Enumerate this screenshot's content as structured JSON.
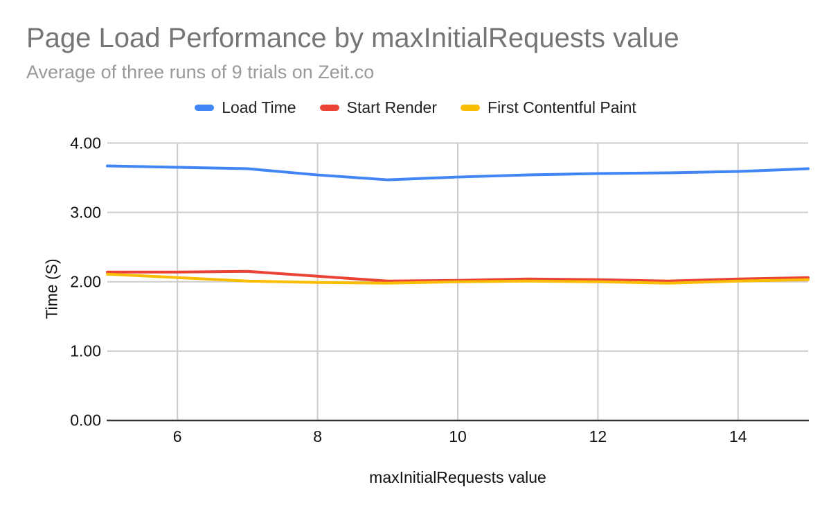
{
  "chart_data": {
    "type": "line",
    "title": "Page Load Performance by maxInitialRequests value",
    "subtitle": "Average of three runs of 9 trials on Zeit.co",
    "xlabel": "maxInitialRequests value",
    "ylabel": "Time (S)",
    "x": [
      5,
      6,
      7,
      8,
      9,
      10,
      11,
      12,
      13,
      14,
      15
    ],
    "series": [
      {
        "name": "Load Time",
        "color": "#4285F4",
        "values": [
          3.67,
          3.65,
          3.63,
          3.54,
          3.47,
          3.51,
          3.54,
          3.56,
          3.57,
          3.59,
          3.63
        ]
      },
      {
        "name": "Start Render",
        "color": "#EA4335",
        "values": [
          2.14,
          2.14,
          2.15,
          2.08,
          2.01,
          2.02,
          2.04,
          2.03,
          2.01,
          2.04,
          2.06
        ]
      },
      {
        "name": "First Contentful Paint",
        "color": "#FBBC04",
        "values": [
          2.11,
          2.06,
          2.01,
          1.99,
          1.98,
          2.0,
          2.01,
          2.0,
          1.98,
          2.01,
          2.03
        ]
      }
    ],
    "xlim": [
      5,
      15
    ],
    "ylim": [
      0,
      4
    ],
    "x_ticks": [
      6,
      8,
      10,
      12,
      14
    ],
    "x_tick_labels": [
      "6",
      "8",
      "10",
      "12",
      "14"
    ],
    "y_ticks": [
      0,
      1,
      2,
      3,
      4
    ],
    "y_tick_labels": [
      "0.00",
      "1.00",
      "2.00",
      "3.00",
      "4.00"
    ],
    "grid": true,
    "legend_position": "top",
    "colors": {
      "grid": "#cccccc",
      "axis": "#333333",
      "title_text": "#757575",
      "subtitle_text": "#999999",
      "tick_text": "#111111",
      "background": "#ffffff"
    }
  }
}
